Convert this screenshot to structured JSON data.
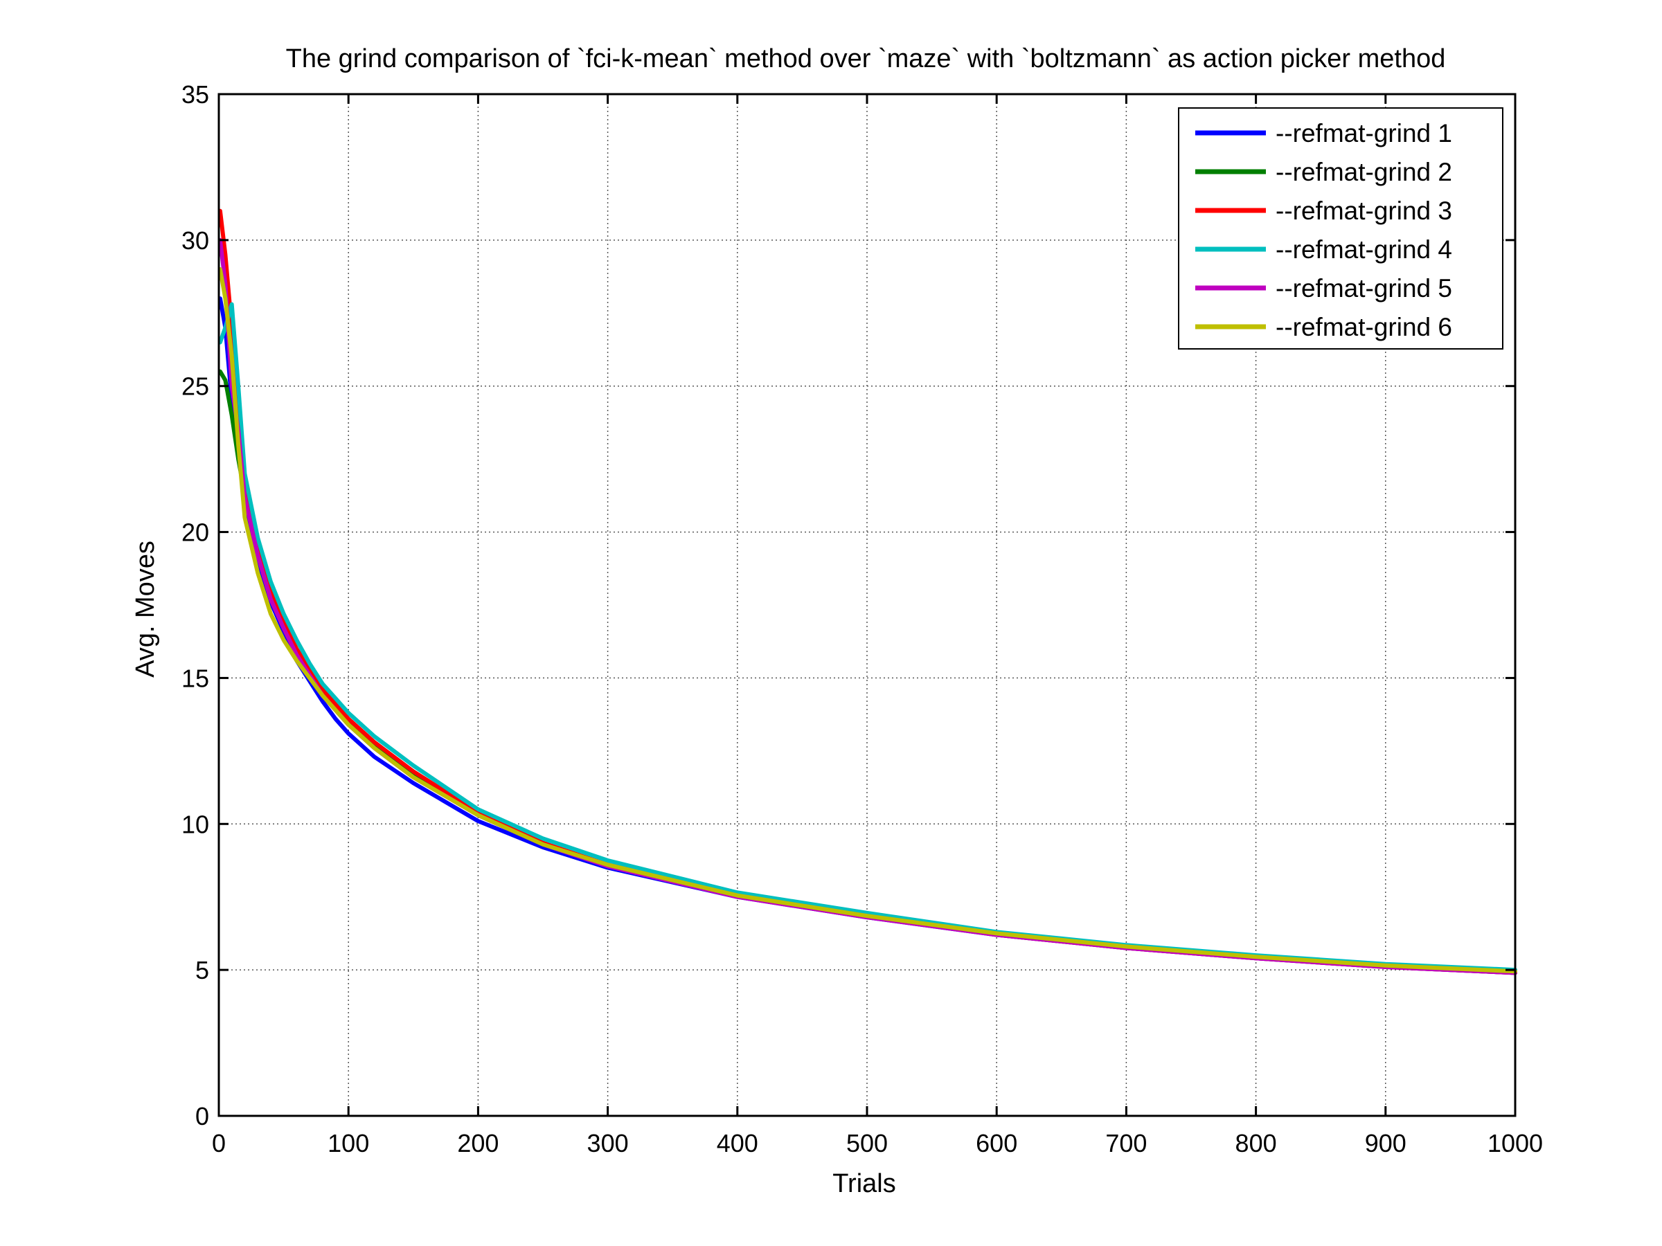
{
  "chart_data": {
    "type": "line",
    "title": "The grind comparison of `fci-k-mean` method over `maze` with `boltzmann` as action picker method",
    "xlabel": "Trials",
    "ylabel": "Avg. Moves",
    "xlim": [
      0,
      1000
    ],
    "ylim": [
      0,
      35
    ],
    "xticks": [
      "0",
      "100",
      "200",
      "300",
      "400",
      "500",
      "600",
      "700",
      "800",
      "900",
      "1000"
    ],
    "yticks": [
      "0",
      "5",
      "10",
      "15",
      "20",
      "25",
      "30",
      "35"
    ],
    "grid": true,
    "legend_position": "top-right",
    "x": [
      1,
      5,
      10,
      15,
      20,
      30,
      40,
      50,
      60,
      70,
      80,
      90,
      100,
      120,
      150,
      200,
      250,
      300,
      400,
      500,
      600,
      700,
      800,
      900,
      1000
    ],
    "series": [
      {
        "name": "--refmat-grind 1",
        "color": "#0000ff",
        "values": [
          28.0,
          27.0,
          24.5,
          23.0,
          21.0,
          19.0,
          17.6,
          16.6,
          15.6,
          14.9,
          14.2,
          13.6,
          13.1,
          12.3,
          11.4,
          10.1,
          9.2,
          8.5,
          7.5,
          6.8,
          6.2,
          5.75,
          5.4,
          5.1,
          4.9
        ]
      },
      {
        "name": "--refmat-grind 2",
        "color": "#007f00",
        "values": [
          25.5,
          25.2,
          24.0,
          22.5,
          21.3,
          19.3,
          17.8,
          16.8,
          15.9,
          15.2,
          14.5,
          14.0,
          13.5,
          12.7,
          11.7,
          10.3,
          9.3,
          8.6,
          7.55,
          6.85,
          6.25,
          5.8,
          5.45,
          5.15,
          4.9
        ]
      },
      {
        "name": "--refmat-grind 3",
        "color": "#ff0000",
        "values": [
          31.0,
          29.5,
          27.0,
          24.0,
          21.8,
          19.5,
          18.0,
          16.9,
          16.0,
          15.3,
          14.6,
          14.1,
          13.6,
          12.8,
          11.8,
          10.4,
          9.35,
          8.6,
          7.55,
          6.85,
          6.2,
          5.75,
          5.4,
          5.1,
          4.9
        ]
      },
      {
        "name": "--refmat-grind 4",
        "color": "#00bfbf",
        "values": [
          26.5,
          27.0,
          27.8,
          25.0,
          22.0,
          19.8,
          18.3,
          17.2,
          16.3,
          15.5,
          14.8,
          14.3,
          13.8,
          13.0,
          12.0,
          10.5,
          9.5,
          8.75,
          7.65,
          6.95,
          6.3,
          5.85,
          5.5,
          5.2,
          5.0
        ]
      },
      {
        "name": "--refmat-grind 5",
        "color": "#bf00bf",
        "values": [
          30.0,
          28.5,
          25.0,
          23.5,
          21.2,
          19.2,
          17.7,
          16.7,
          15.8,
          15.1,
          14.4,
          13.9,
          13.4,
          12.6,
          11.6,
          10.3,
          9.3,
          8.55,
          7.5,
          6.8,
          6.2,
          5.75,
          5.4,
          5.1,
          4.9
        ]
      },
      {
        "name": "--refmat-grind 6",
        "color": "#bfbf00",
        "values": [
          29.0,
          28.0,
          26.0,
          23.0,
          20.5,
          18.6,
          17.2,
          16.3,
          15.6,
          15.0,
          14.4,
          13.9,
          13.4,
          12.6,
          11.6,
          10.3,
          9.3,
          8.6,
          7.55,
          6.85,
          6.25,
          5.8,
          5.45,
          5.15,
          4.95
        ]
      }
    ]
  }
}
